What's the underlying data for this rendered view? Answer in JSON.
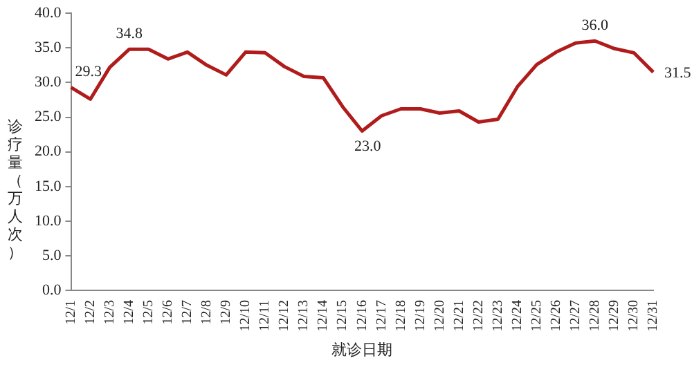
{
  "chart_data": {
    "type": "line",
    "xlabel": "就诊日期",
    "ylabel": "诊疗量（万人次）",
    "categories": [
      "12/1",
      "12/2",
      "12/3",
      "12/4",
      "12/5",
      "12/6",
      "12/7",
      "12/8",
      "12/9",
      "12/10",
      "12/11",
      "12/12",
      "12/13",
      "12/14",
      "12/15",
      "12/16",
      "12/17",
      "12/18",
      "12/19",
      "12/20",
      "12/21",
      "12/22",
      "12/23",
      "12/24",
      "12/25",
      "12/26",
      "12/27",
      "12/28",
      "12/29",
      "12/30",
      "12/31"
    ],
    "series": [
      {
        "color": "#b01c1c",
        "values": [
          29.3,
          27.6,
          32.2,
          34.8,
          34.8,
          33.4,
          34.4,
          32.5,
          31.1,
          34.4,
          34.3,
          32.3,
          30.9,
          30.7,
          26.5,
          23.0,
          25.2,
          26.2,
          26.2,
          25.6,
          25.9,
          24.3,
          24.7,
          29.4,
          32.6,
          34.4,
          35.7,
          36.0,
          34.9,
          34.3,
          31.5
        ],
        "value_labels": [
          "29.3",
          null,
          null,
          "34.8",
          null,
          null,
          null,
          null,
          null,
          null,
          null,
          null,
          null,
          null,
          null,
          "23.0",
          null,
          null,
          null,
          null,
          null,
          null,
          null,
          null,
          null,
          null,
          null,
          "36.0",
          null,
          null,
          "31.5"
        ]
      }
    ],
    "ylim": [
      0,
      40
    ],
    "yticks": [
      {
        "value": 0,
        "label": "0.0"
      },
      {
        "value": 5,
        "label": "5.0"
      },
      {
        "value": 10,
        "label": "10.0"
      },
      {
        "value": 15,
        "label": "15.0"
      },
      {
        "value": 20,
        "label": "20.0"
      },
      {
        "value": 25,
        "label": "25.0"
      },
      {
        "value": 30,
        "label": "30.0"
      },
      {
        "value": 35,
        "label": "35.0"
      },
      {
        "value": 40,
        "label": "40.0"
      }
    ],
    "grid": false,
    "legend": false,
    "marker": "none",
    "line_style": "solid"
  }
}
